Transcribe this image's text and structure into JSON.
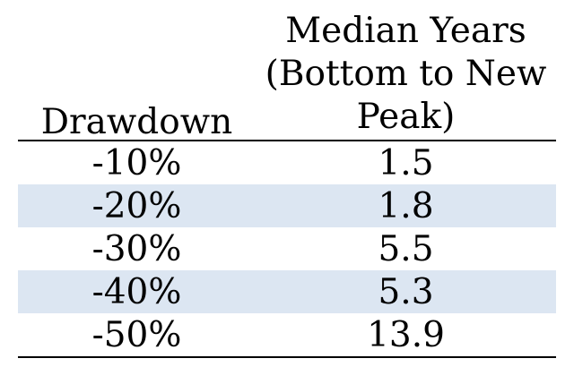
{
  "chart_data": {
    "type": "table",
    "columns": [
      "Drawdown",
      "Median Years (Bottom to New Peak)"
    ],
    "header": {
      "left": "Drawdown",
      "right_lines": [
        "Median Years",
        "(Bottom to New",
        "Peak)"
      ]
    },
    "rows": [
      {
        "drawdown": "-10%",
        "median_years": "1.5"
      },
      {
        "drawdown": "-20%",
        "median_years": "1.8"
      },
      {
        "drawdown": "-30%",
        "median_years": "5.5"
      },
      {
        "drawdown": "-40%",
        "median_years": "5.3"
      },
      {
        "drawdown": "-50%",
        "median_years": "13.9"
      }
    ],
    "banding_color": "#dce6f2",
    "banded_rows": [
      1,
      3
    ]
  }
}
